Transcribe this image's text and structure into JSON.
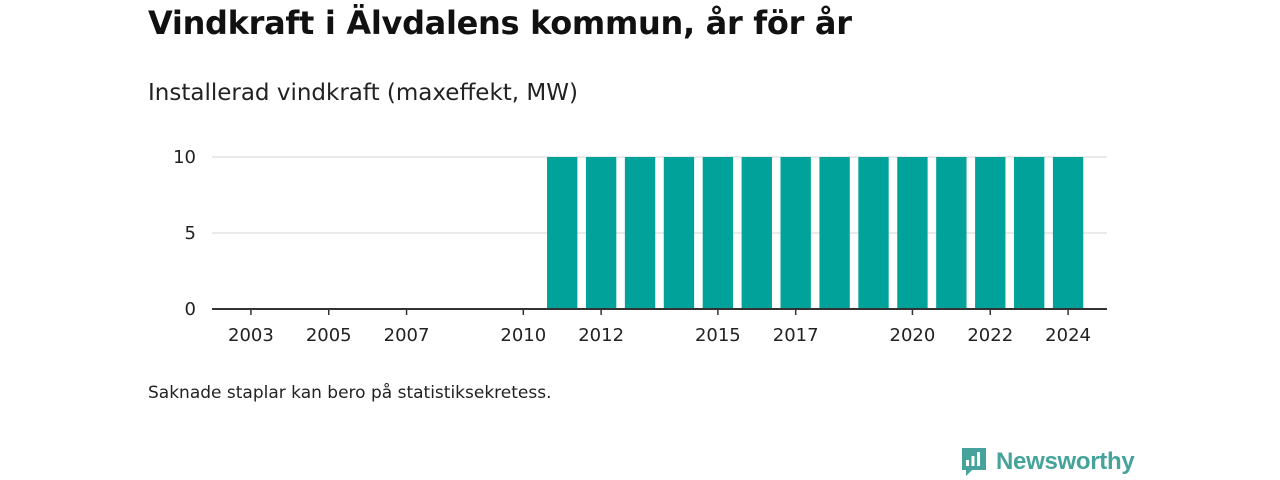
{
  "title": "Vindkraft i Älvdalens kommun, år för år",
  "subtitle": "Installerad vindkraft (maxeffekt, MW)",
  "note": "Saknade staplar kan bero på statistiksekretess.",
  "brand": {
    "name": "Newsworthy",
    "icon": "newsworthy-logo-icon",
    "color": "#45a39c"
  },
  "colors": {
    "bar": "#00a29a",
    "grid": "#dddddd",
    "axis": "#333333"
  },
  "chart_data": {
    "type": "bar",
    "title": "Vindkraft i Älvdalens kommun, år för år",
    "ylabel": "Installerad vindkraft (maxeffekt, MW)",
    "xlabel": "",
    "x_range": [
      2002,
      2025
    ],
    "ylim": [
      0,
      10
    ],
    "yticks": [
      0,
      5,
      10
    ],
    "xticks": [
      2003,
      2005,
      2007,
      2010,
      2012,
      2015,
      2017,
      2020,
      2022,
      2024
    ],
    "grid": true,
    "categories": [
      2011,
      2012,
      2013,
      2014,
      2015,
      2016,
      2017,
      2018,
      2019,
      2020,
      2021,
      2022,
      2023,
      2024
    ],
    "values": [
      10,
      10,
      10,
      10,
      10,
      10,
      10,
      10,
      10,
      10,
      10,
      10,
      10,
      10
    ]
  }
}
